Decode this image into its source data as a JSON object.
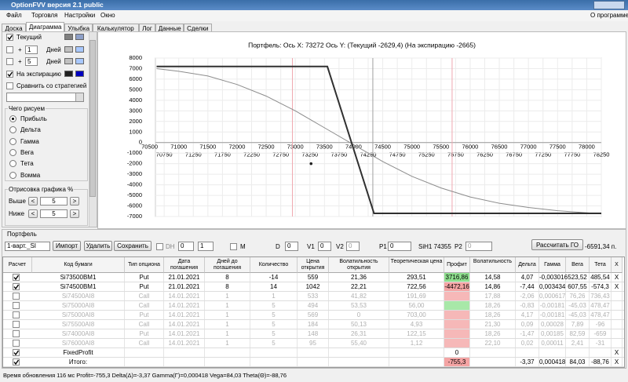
{
  "window": {
    "title": "OptionFVV версия 2.1 public"
  },
  "menu": {
    "items": [
      "Файл",
      "Торговля",
      "Настройки",
      "Окно"
    ],
    "about": "О программе"
  },
  "tabs": {
    "items": [
      "Доска",
      "Диаграмма",
      "Улыбка",
      "Калькулятор",
      "Лог",
      "Данные",
      "Сделки"
    ],
    "active": 1
  },
  "left_panel": {
    "curves": [
      {
        "label": "Текущий",
        "checked": true,
        "swatches": [
          "#808080",
          "#8ea0c8"
        ]
      },
      {
        "prefix": "+",
        "days": "1",
        "label": "Дней",
        "checked": false,
        "swatches": [
          "#c0c0c0",
          "#a8c8ff"
        ]
      },
      {
        "prefix": "+",
        "days": "5",
        "label": "Дней",
        "checked": false,
        "swatches": [
          "#c0c0c0",
          "#a8c8ff"
        ]
      },
      {
        "label": "На экспирацию",
        "checked": true,
        "swatches": [
          "#202020",
          "#0000c0"
        ]
      }
    ],
    "compare": {
      "label": "Сравнить со стратегией",
      "checked": false
    },
    "draw_group": {
      "title": "Чего рисуем",
      "options": [
        "Прибыль",
        "Дельта",
        "Гамма",
        "Вега",
        "Тета",
        "Вомма"
      ],
      "selected": 0
    },
    "range_group": {
      "title": "Отрисовка графика %",
      "rows": [
        {
          "label": "Выше",
          "value": "5"
        },
        {
          "label": "Ниже",
          "value": "5"
        }
      ],
      "dec": "<",
      "inc": ">"
    }
  },
  "chart": {
    "type": "line",
    "title": "Портфель: Ось X: 73272 Ось Y: (Текущий -2629,4) (На экспирацию -2665)",
    "xlim": [
      70600,
      78250
    ],
    "ylim": [
      -7000,
      8000
    ],
    "yticks": [
      -7000,
      -6000,
      -5000,
      -4000,
      -3000,
      -2000,
      -1000,
      0,
      1000,
      2000,
      3000,
      4000,
      5000,
      6000,
      7000,
      8000
    ],
    "xticks_top": [
      70500,
      71000,
      71500,
      72000,
      72500,
      73000,
      73500,
      74000,
      74500,
      75000,
      75500,
      76000,
      76500,
      77000,
      77500,
      78000
    ],
    "xticks_bottom": [
      70750,
      71250,
      71750,
      72250,
      72750,
      73250,
      73750,
      74250,
      74750,
      75250,
      75750,
      76250,
      76750,
      77250,
      77750,
      78250
    ],
    "grid": true,
    "series": [
      {
        "color": "#8c8c8c",
        "x": [
          70620,
          71000,
          71500,
          72000,
          72500,
          73000,
          73500,
          74000,
          74500,
          75000,
          75500,
          76000,
          76500,
          77000,
          77500,
          78000,
          78250
        ],
        "values": [
          7000,
          6750,
          6300,
          5500,
          4400,
          3000,
          1400,
          -200,
          -1800,
          -3200,
          -4300,
          -5150,
          -5750,
          -6150,
          -6450,
          -6650,
          -6750
        ]
      },
      {
        "color": "#303030",
        "x": [
          70620,
          73550,
          74350,
          78250
        ],
        "values": [
          7200,
          7200,
          -6700,
          -6700
        ]
      }
    ],
    "vlines": [
      {
        "x": 72950,
        "color": "#f0a8b0"
      },
      {
        "x": 75690,
        "color": "#f0a8b0"
      },
      {
        "x": 74330,
        "color": "#a0a0a0"
      }
    ],
    "point": {
      "x": 73270,
      "y": -2000
    }
  },
  "portfolio": {
    "title": "Портфель",
    "select": "1-варт._SI",
    "buttons": [
      "Импорт",
      "Удалить",
      "Сохранить"
    ],
    "dh": "DH",
    "spin1": "0",
    "spin2": "1",
    "m": "M",
    "fields": [
      {
        "label": "D",
        "value": "0"
      },
      {
        "label": "V1",
        "value": "0"
      },
      {
        "label": "V2",
        "value": "0"
      },
      {
        "label": "P1",
        "value": "0"
      }
    ],
    "futures": "SiH1 74355",
    "p2": {
      "label": "P2",
      "value": "0"
    },
    "calc": "Рассчитать ГО",
    "margin": "-6591,34 п."
  },
  "table": {
    "columns": [
      "Расчет",
      "Код бумаги",
      "Тип опциона",
      "Дата погашения",
      "Дней до погашения",
      "Количество",
      "Цена открытия",
      "Волатильность открытия",
      "Теоретическая цена",
      "Профит",
      "Волатильность",
      "Дельта",
      "Гамма",
      "Вега",
      "Тета",
      "X"
    ],
    "rows": [
      {
        "checked": true,
        "faded": false,
        "profit_bg": "#8fe08f",
        "cells": [
          "Si73500BM1",
          "Put",
          "21.01.2021",
          "8",
          "-14",
          "559",
          "21,36",
          "293,51",
          "3716,86",
          "14,58",
          "4,07",
          "-0,003016",
          "523,52",
          "485,54",
          "X"
        ]
      },
      {
        "checked": true,
        "faded": false,
        "profit_bg": "#f4a4a4",
        "cells": [
          "Si74500BM1",
          "Put",
          "21.01.2021",
          "8",
          "14",
          "1042",
          "22,21",
          "722,56",
          "-4472,16",
          "14,86",
          "-7,44",
          "0,003434",
          "607,55",
          "-574,3",
          "X"
        ]
      },
      {
        "checked": false,
        "faded": true,
        "profit_bg": "#f6b8b8",
        "cells": [
          "Si74500AI8",
          "Call",
          "14.01.2021",
          "1",
          "1",
          "533",
          "41,82",
          "191,69",
          null,
          "17,88",
          "-2,06",
          "0,000617",
          "76,26",
          "736,43",
          null
        ]
      },
      {
        "checked": false,
        "faded": true,
        "profit_bg": "#a8e8a8",
        "cells": [
          "Si75000AI8",
          "Call",
          "14.01.2021",
          "1",
          "5",
          "494",
          "53,53",
          "56,00",
          null,
          "18,26",
          "-0,83",
          "-0,00181",
          "-45,03",
          "478,47",
          null
        ]
      },
      {
        "checked": false,
        "faded": true,
        "profit_bg": "#f6b8b8",
        "cells": [
          "Si75000AI8",
          "Put",
          "14.01.2021",
          "1",
          "5",
          "569",
          "0",
          "703,00",
          null,
          "18,26",
          "4,17",
          "-0,00181",
          "-45,03",
          "478,47",
          null
        ]
      },
      {
        "checked": false,
        "faded": true,
        "profit_bg": "#f6b8b8",
        "cells": [
          "Si75500AI8",
          "Call",
          "14.01.2021",
          "1",
          "5",
          "184",
          "50,13",
          "4,93",
          null,
          "21,30",
          "0,09",
          "0,00028",
          "7,89",
          "-96",
          null
        ]
      },
      {
        "checked": false,
        "faded": true,
        "profit_bg": "#f6b8b8",
        "cells": [
          "Si74000AI8",
          "Put",
          "14.01.2021",
          "1",
          "5",
          "148",
          "26,31",
          "122,15",
          null,
          "18,26",
          "-1,47",
          "0,00185",
          "82,59",
          "-659",
          null
        ]
      },
      {
        "checked": false,
        "faded": true,
        "profit_bg": "#f6b8b8",
        "cells": [
          "Si76000AI8",
          "Call",
          "14.01.2021",
          "1",
          "5",
          "95",
          "55,40",
          "1,12",
          null,
          "22,10",
          "0,02",
          "0,00011",
          "2,41",
          "-31",
          null
        ]
      },
      {
        "checked": true,
        "faded": false,
        "profit_bg": "#ffffff",
        "cells": [
          "FixedProfit",
          null,
          null,
          null,
          null,
          null,
          null,
          null,
          "0",
          null,
          null,
          null,
          null,
          null,
          "X"
        ]
      },
      {
        "checked": true,
        "faded": false,
        "profit_bg": "#f4a4a4",
        "cells": [
          "Итого:",
          null,
          null,
          null,
          null,
          null,
          null,
          null,
          "-755,3",
          null,
          "-3,37",
          "0,000418",
          "84,03",
          "-88,76",
          "X"
        ]
      }
    ]
  },
  "status": "Время обновления 116 мс  Profit=-755,3 Delta(Δ)=-3,37 Gamma(Γ)=0,000418 Vega=84,03 Theta(Θ)=-88,76"
}
